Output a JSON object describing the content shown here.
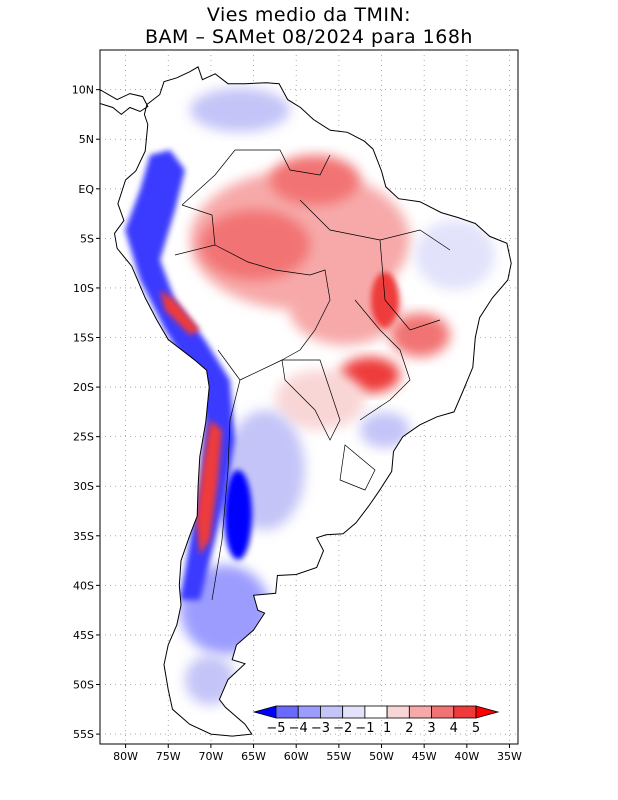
{
  "title": {
    "line1": "Vies medio da TMIN:",
    "line2": "BAM – SAMet 08/2024  para 168h"
  },
  "map": {
    "lon_range": [
      -83,
      -34
    ],
    "lat_range": [
      -56,
      14
    ],
    "lat_ticks": [
      {
        "value": 10,
        "label": "10N"
      },
      {
        "value": 5,
        "label": "5N"
      },
      {
        "value": 0,
        "label": "EQ"
      },
      {
        "value": -5,
        "label": "5S"
      },
      {
        "value": -10,
        "label": "10S"
      },
      {
        "value": -15,
        "label": "15S"
      },
      {
        "value": -20,
        "label": "20S"
      },
      {
        "value": -25,
        "label": "25S"
      },
      {
        "value": -30,
        "label": "30S"
      },
      {
        "value": -35,
        "label": "35S"
      },
      {
        "value": -40,
        "label": "40S"
      },
      {
        "value": -45,
        "label": "45S"
      },
      {
        "value": -50,
        "label": "50S"
      },
      {
        "value": -55,
        "label": "55S"
      }
    ],
    "lon_ticks": [
      {
        "value": -80,
        "label": "80W"
      },
      {
        "value": -75,
        "label": "75W"
      },
      {
        "value": -70,
        "label": "70W"
      },
      {
        "value": -65,
        "label": "65W"
      },
      {
        "value": -60,
        "label": "60W"
      },
      {
        "value": -55,
        "label": "55W"
      },
      {
        "value": -50,
        "label": "50W"
      },
      {
        "value": -45,
        "label": "45W"
      },
      {
        "value": -40,
        "label": "40W"
      },
      {
        "value": -35,
        "label": "35W"
      }
    ]
  },
  "colorbar": {
    "labels": [
      "−5",
      "−4",
      "−3",
      "−2",
      "−1",
      "1",
      "2",
      "3",
      "4",
      "5"
    ],
    "colors": [
      "#0000ff",
      "#6a6aff",
      "#9c9cff",
      "#c4c4f8",
      "#e2e2fb",
      "#ffffff",
      "#f9d6d6",
      "#f7a9a9",
      "#f27373",
      "#ee3a3a",
      "#ff0000"
    ]
  }
}
